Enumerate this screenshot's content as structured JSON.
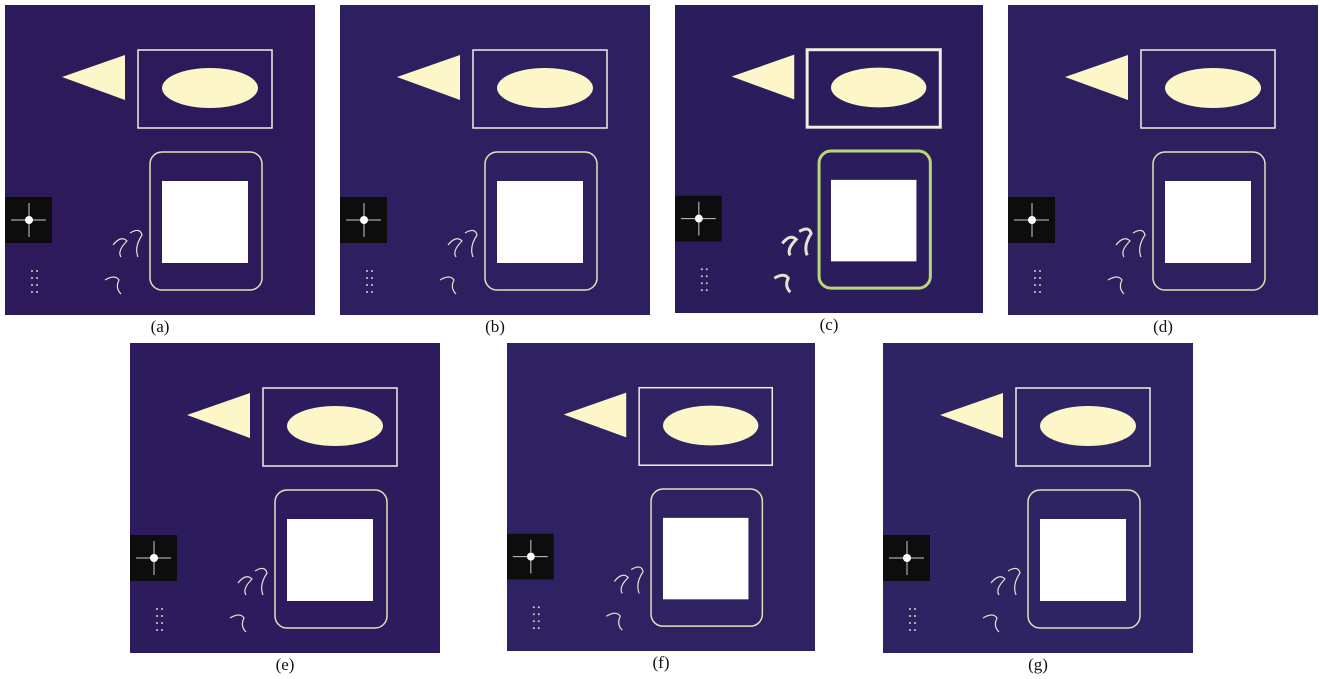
{
  "panels": [
    {
      "caption": "(a)"
    },
    {
      "caption": "(b)"
    },
    {
      "caption": "(c)"
    },
    {
      "caption": "(d)"
    },
    {
      "caption": "(e)"
    },
    {
      "caption": "(f)"
    },
    {
      "caption": "(g)"
    }
  ]
}
